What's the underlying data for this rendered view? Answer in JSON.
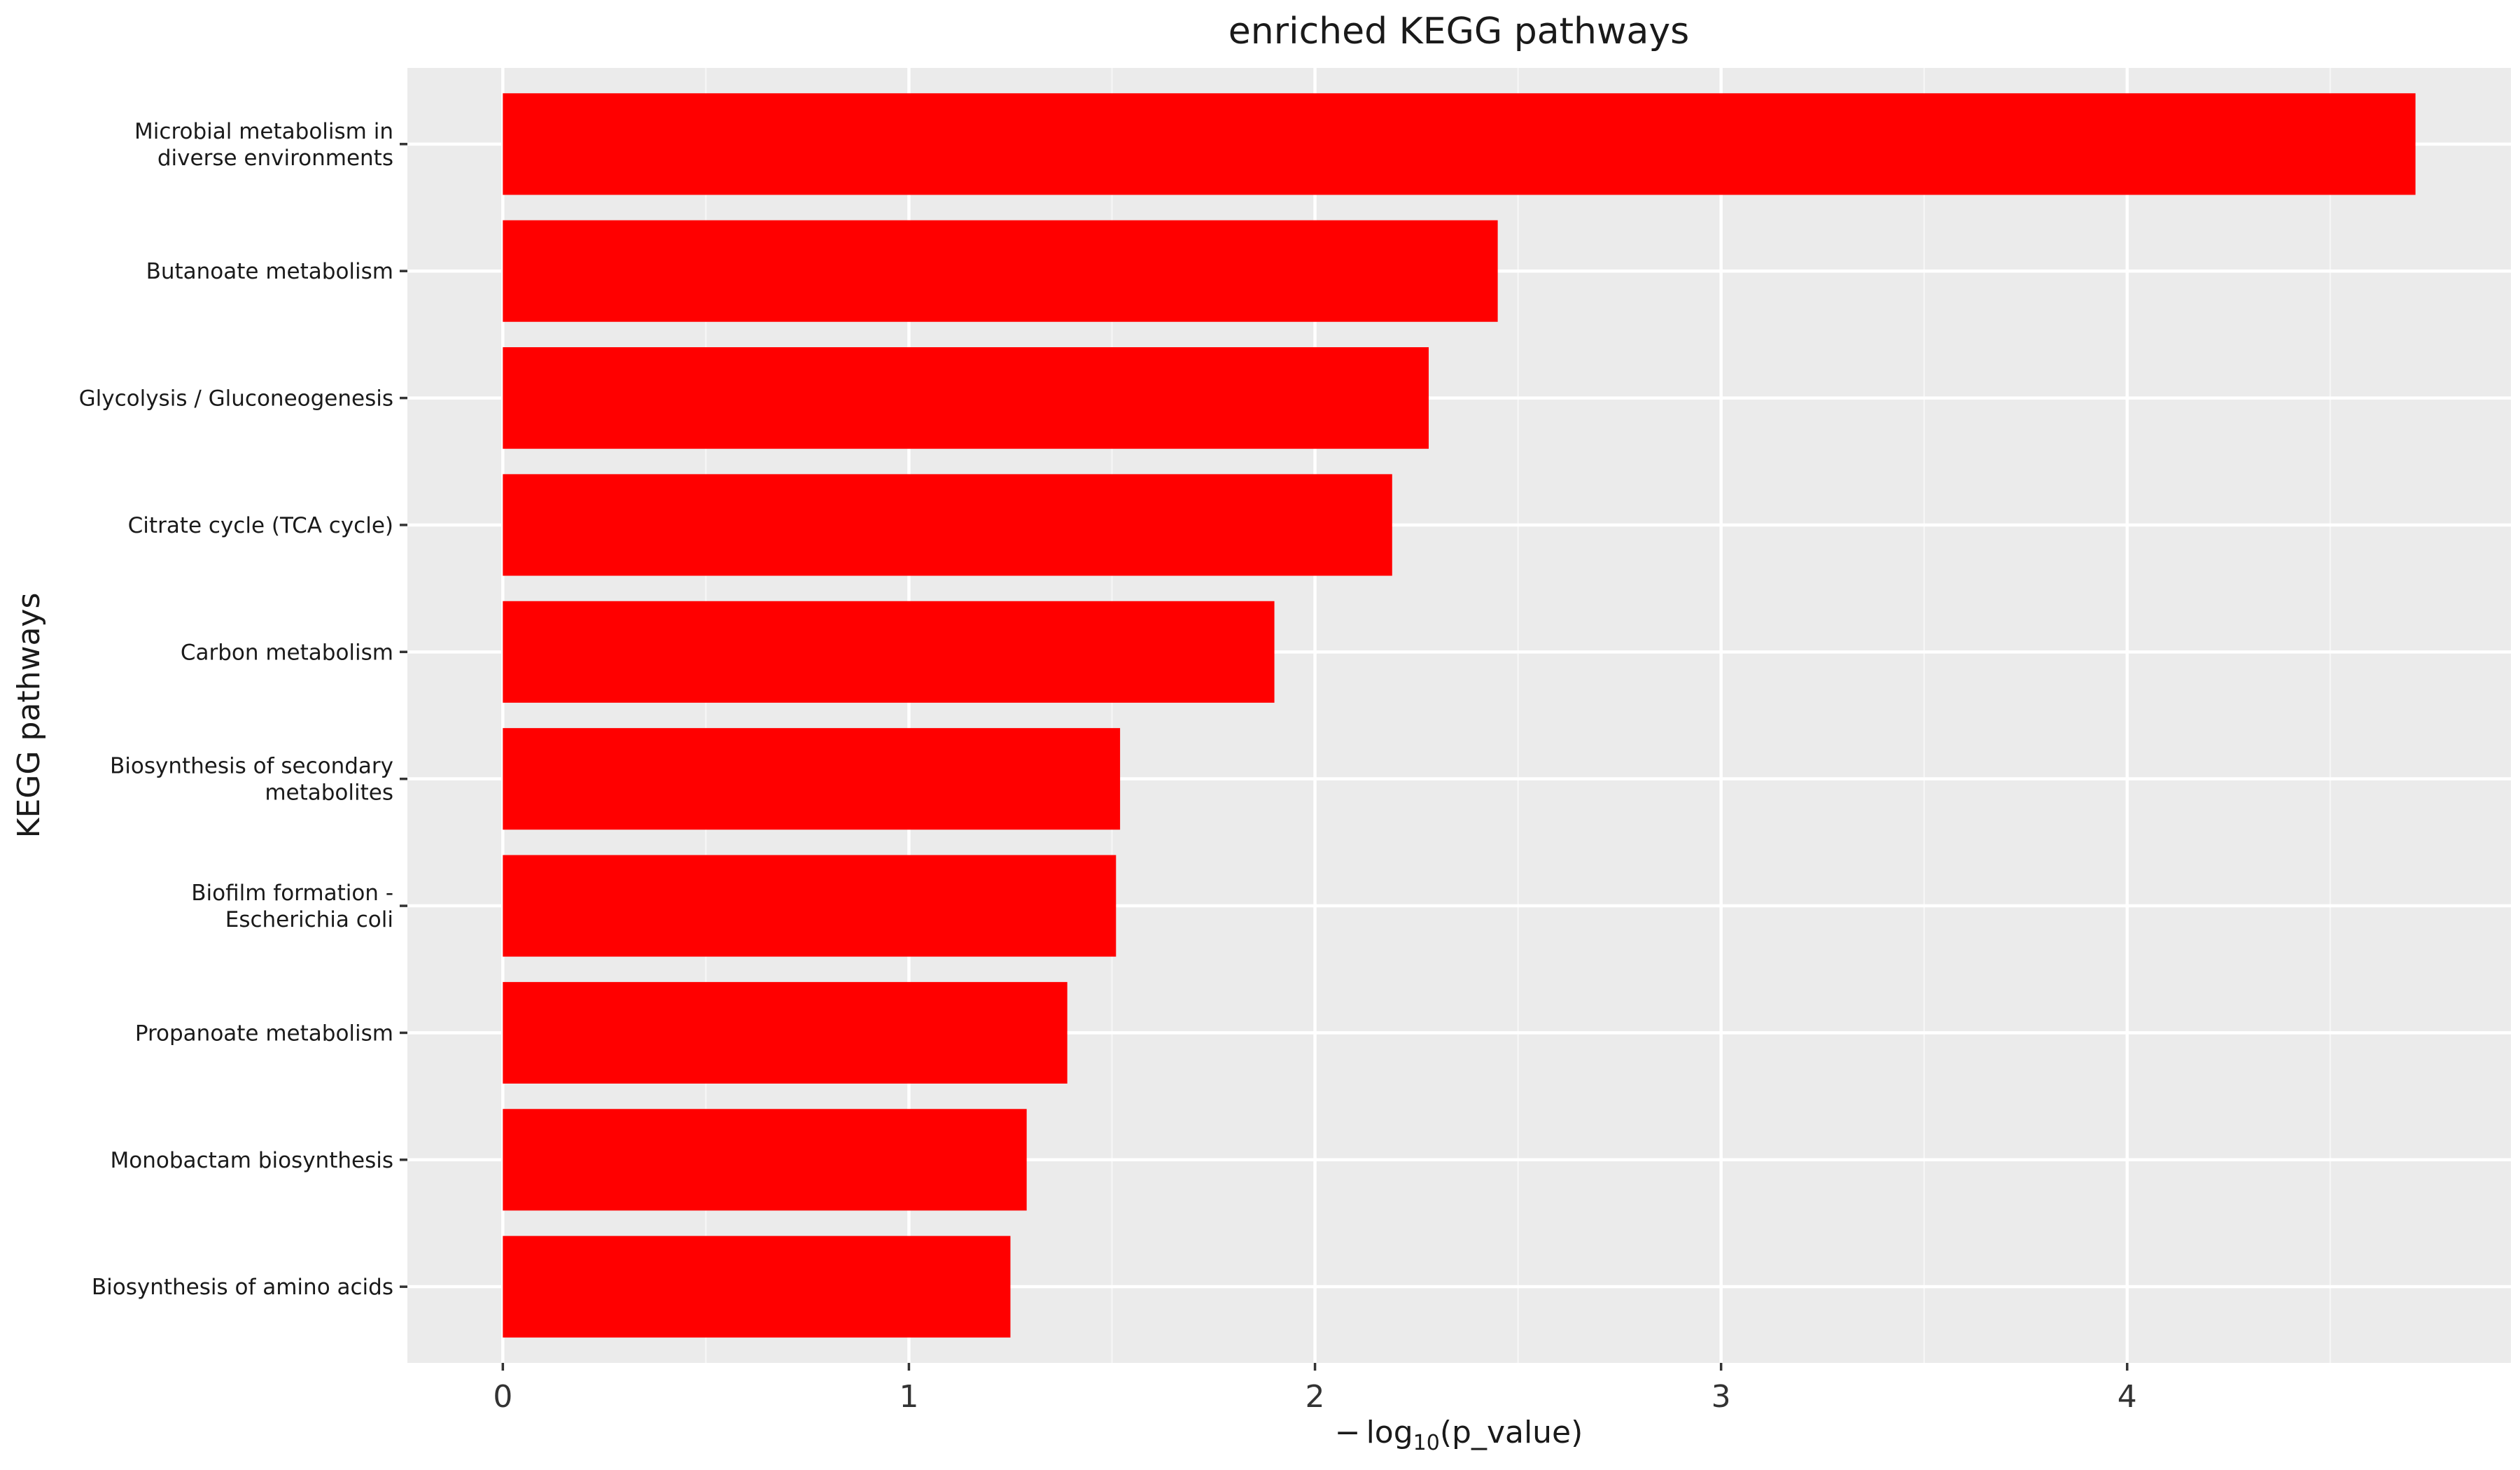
{
  "chart_data": {
    "type": "bar",
    "orientation": "horizontal",
    "title": "enriched KEGG pathways",
    "xlabel": "−log10(p_value)",
    "xlabel_parts": {
      "minus": "−",
      "log": "log",
      "subscript": "10",
      "argument": "(p_value)"
    },
    "ylabel": "KEGG pathways",
    "categories": [
      "Microbial metabolism in\ndiverse environments",
      "Butanoate metabolism",
      "Glycolysis / Gluconeogenesis",
      "Citrate cycle (TCA cycle)",
      "Carbon metabolism",
      "Biosynthesis of secondary\nmetabolites",
      "Biofilm formation -\nEscherichia coli",
      "Propanoate metabolism",
      "Monobactam biosynthesis",
      "Biosynthesis of amino acids"
    ],
    "values": [
      4.71,
      2.45,
      2.28,
      2.19,
      1.9,
      1.52,
      1.51,
      1.39,
      1.29,
      1.25
    ],
    "xlim": [
      -0.235,
      4.945
    ],
    "xticks": [
      0,
      1,
      2,
      3,
      4
    ],
    "xtick_labels": [
      "0",
      "1",
      "2",
      "3",
      "4"
    ],
    "minor_xticks": [
      0.5,
      1.5,
      2.5,
      3.5,
      4.5
    ],
    "grid": true,
    "colors": {
      "bar": "#ff0000",
      "panel": "#ebebeb",
      "grid_major": "#ffffff",
      "grid_minor": "#f5f5f5",
      "text": "#1a1a1a",
      "tick": "#333333"
    }
  }
}
